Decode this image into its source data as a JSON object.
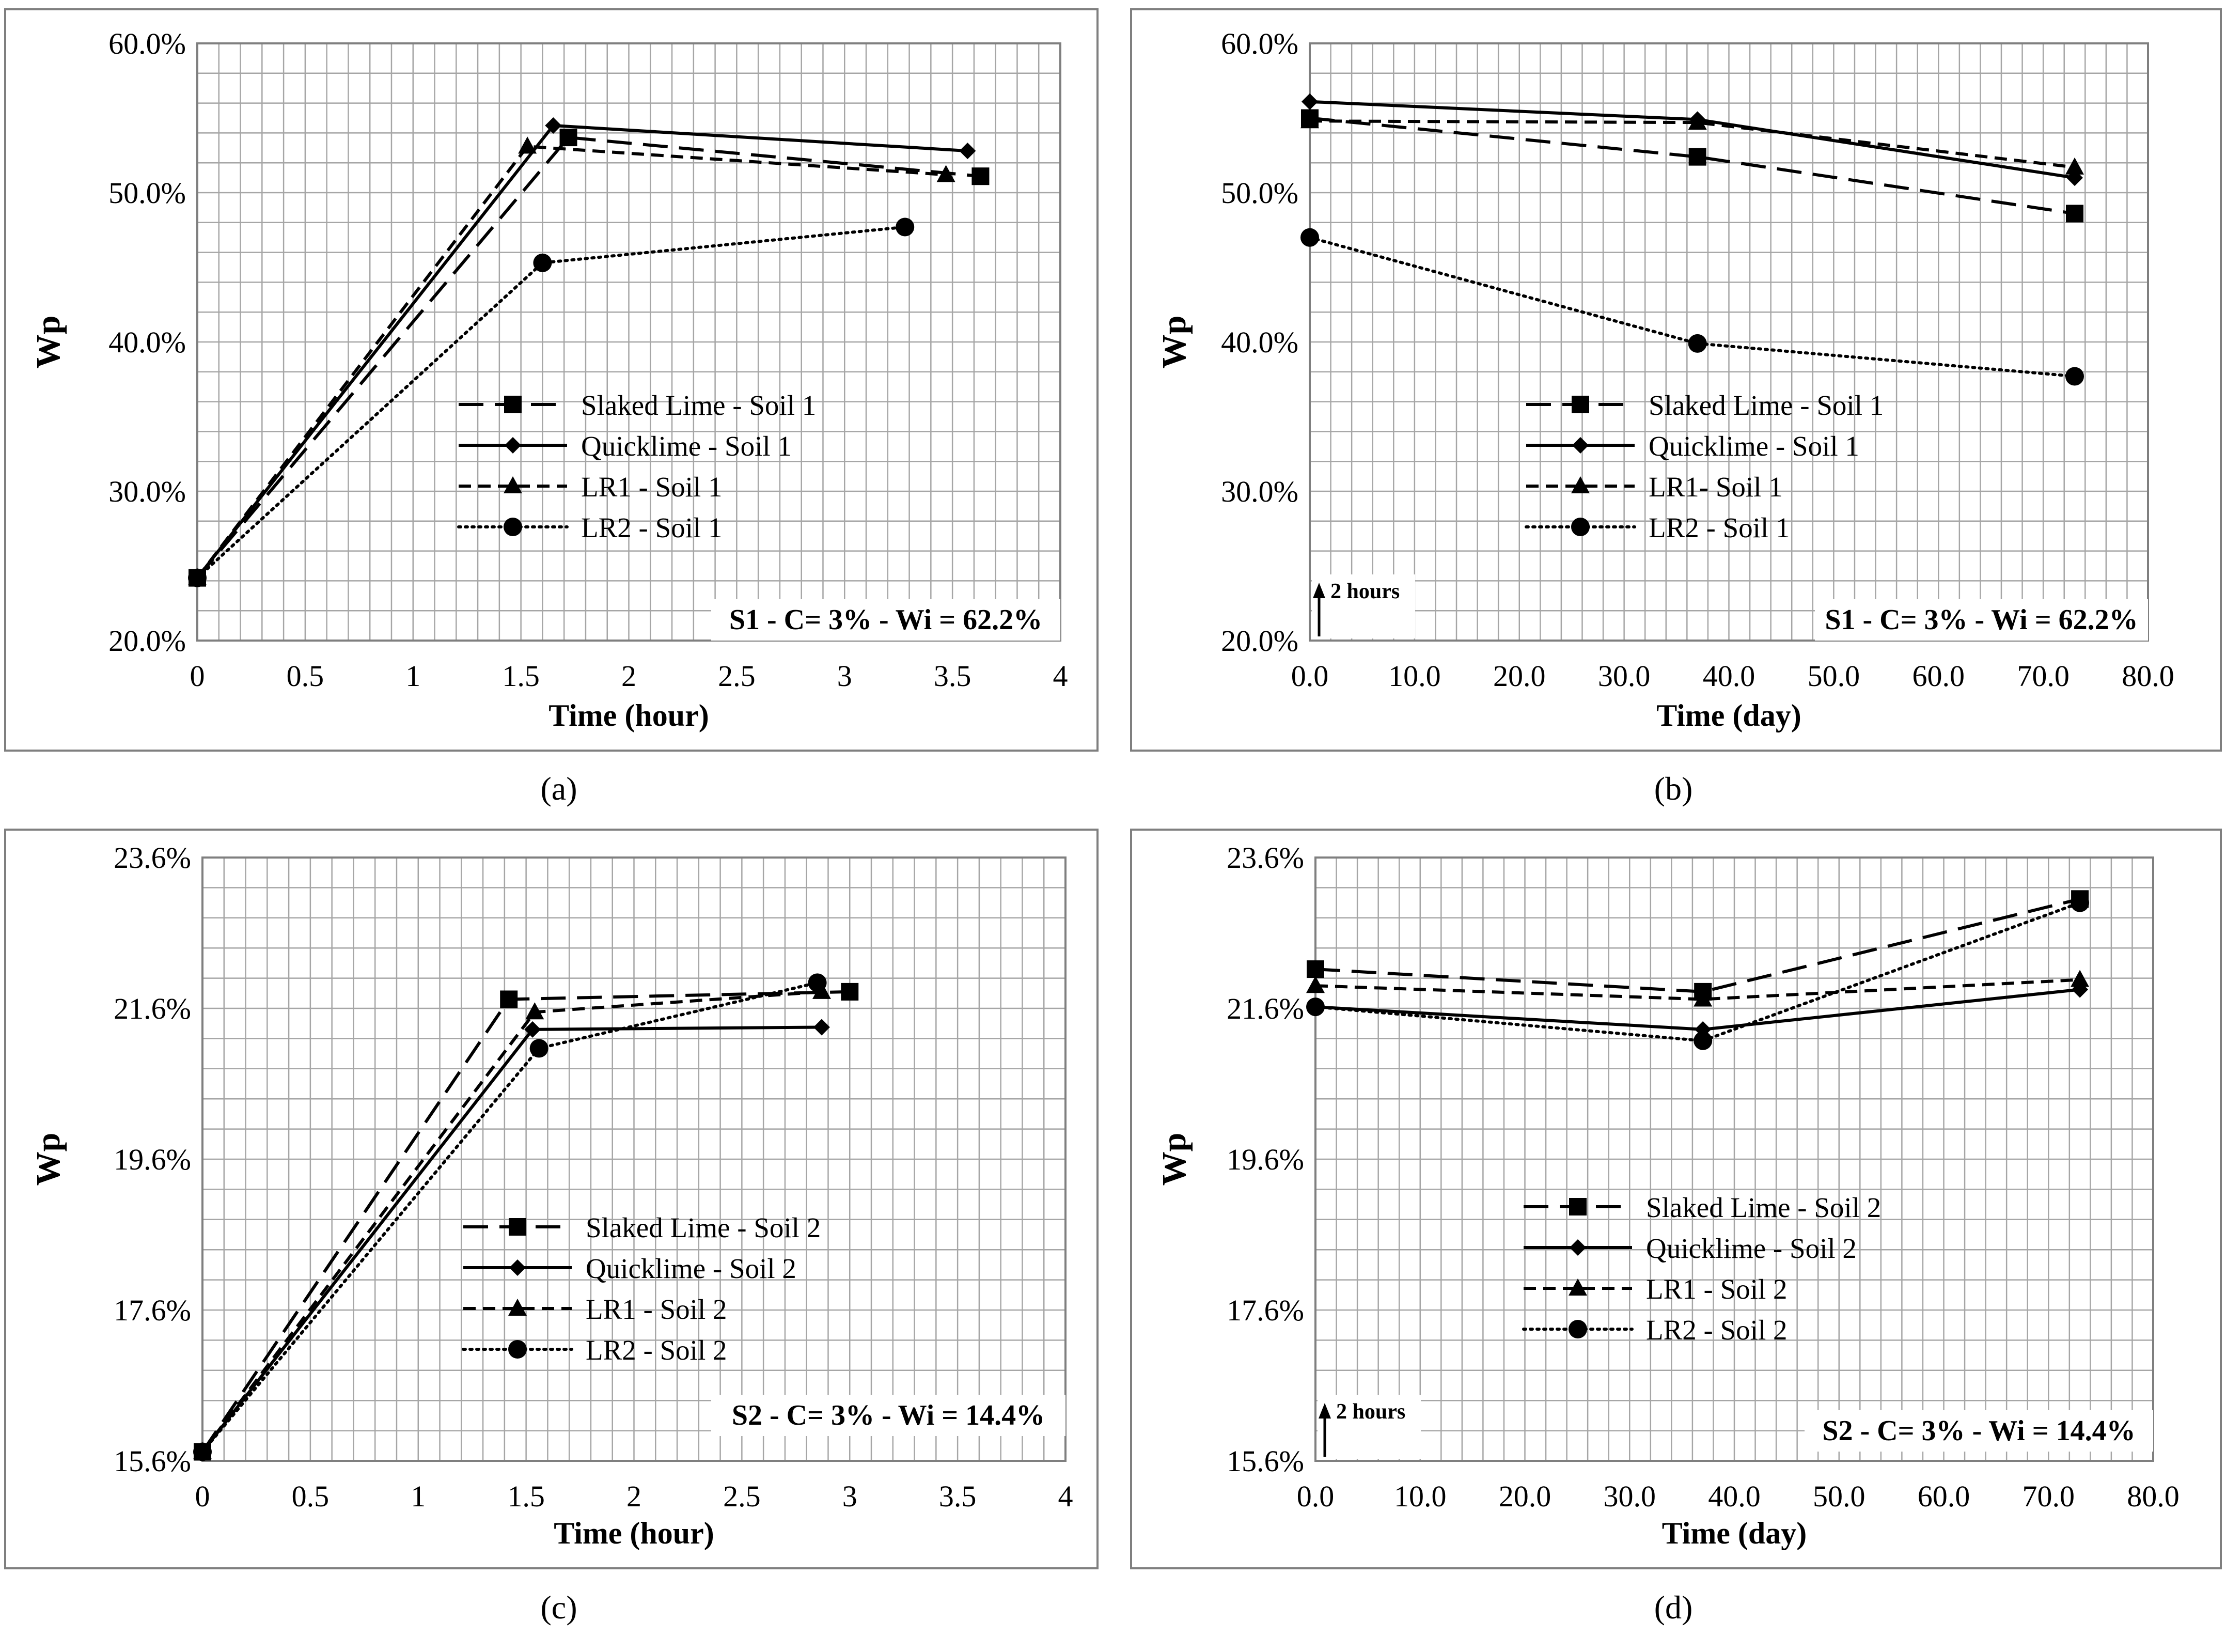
{
  "colors": {
    "frame": "#7f7f7f",
    "grid": "#a6a6a6",
    "series": "#000000",
    "background": "#ffffff"
  },
  "panels": [
    {
      "caption": "(a)",
      "annotation": "S1 - C= 3% - Wi = 62.2%",
      "arrow_note": ""
    },
    {
      "caption": "(b)",
      "annotation": "S1 - C= 3% - Wi = 62.2%",
      "arrow_note": "2 hours"
    },
    {
      "caption": "(c)",
      "annotation": "S2 - C= 3% - Wi = 14.4%",
      "arrow_note": ""
    },
    {
      "caption": "(d)",
      "annotation": "S2 - C= 3% - Wi = 14.4%",
      "arrow_note": "2 hours"
    }
  ],
  "chart_data": [
    {
      "type": "line",
      "xlabel": "Time (hour)",
      "ylabel": "Wp",
      "xlim": [
        0,
        4
      ],
      "ylim": [
        20,
        60
      ],
      "x_ticks": [
        "0",
        "0.5",
        "1",
        "1.5",
        "2",
        "2.5",
        "3",
        "3.5",
        "4"
      ],
      "y_ticks": [
        "20.0%",
        "30.0%",
        "40.0%",
        "50.0%",
        "60.0%"
      ],
      "grid": true,
      "legend_position": "center-right",
      "series": [
        {
          "name": "Slaked Lime - Soil 1",
          "line": "long-dash",
          "marker": "square",
          "points": [
            [
              0,
              24.2
            ],
            [
              1.72,
              53.7
            ],
            [
              3.63,
              51.1
            ]
          ]
        },
        {
          "name": "Quicklime - Soil 1",
          "line": "solid",
          "marker": "diamond",
          "points": [
            [
              0,
              24.2
            ],
            [
              1.65,
              54.5
            ],
            [
              3.57,
              52.8
            ]
          ]
        },
        {
          "name": "LR1 - Soil 1",
          "line": "short-dash",
          "marker": "triangle",
          "points": [
            [
              0,
              24.2
            ],
            [
              1.53,
              53.1
            ],
            [
              3.47,
              51.2
            ]
          ]
        },
        {
          "name": "LR2 - Soil 1",
          "line": "dotted",
          "marker": "circle",
          "points": [
            [
              0,
              24.2
            ],
            [
              1.6,
              45.3
            ],
            [
              3.28,
              47.7
            ]
          ]
        }
      ]
    },
    {
      "type": "line",
      "xlabel": "Time (day)",
      "ylabel": "Wp",
      "xlim": [
        0,
        80
      ],
      "ylim": [
        20,
        60
      ],
      "x_ticks": [
        "0.0",
        "10.0",
        "20.0",
        "30.0",
        "40.0",
        "50.0",
        "60.0",
        "70.0",
        "80.0"
      ],
      "y_ticks": [
        "20.0%",
        "30.0%",
        "40.0%",
        "50.0%",
        "60.0%"
      ],
      "grid": true,
      "legend_position": "center-right",
      "series": [
        {
          "name": "Slaked Lime - Soil 1",
          "line": "long-dash",
          "marker": "square",
          "points": [
            [
              0,
              55.0
            ],
            [
              37,
              52.4
            ],
            [
              73,
              48.6
            ]
          ]
        },
        {
          "name": "Quicklime - Soil 1",
          "line": "solid",
          "marker": "diamond",
          "points": [
            [
              0,
              56.1
            ],
            [
              37,
              54.9
            ],
            [
              73,
              51.0
            ]
          ]
        },
        {
          "name": "LR1- Soil 1",
          "line": "short-dash",
          "marker": "triangle",
          "points": [
            [
              0,
              54.8
            ],
            [
              37,
              54.7
            ],
            [
              73,
              51.7
            ]
          ]
        },
        {
          "name": "LR2 - Soil 1",
          "line": "dotted",
          "marker": "circle",
          "points": [
            [
              0,
              47.0
            ],
            [
              37,
              39.9
            ],
            [
              73,
              37.7
            ]
          ]
        }
      ]
    },
    {
      "type": "line",
      "xlabel": "Time (hour)",
      "ylabel": "Wp",
      "xlim": [
        0,
        4
      ],
      "ylim": [
        15.6,
        23.6
      ],
      "x_ticks": [
        "0",
        "0.5",
        "1",
        "1.5",
        "2",
        "2.5",
        "3",
        "3.5",
        "4"
      ],
      "y_ticks": [
        "15.6%",
        "17.6%",
        "19.6%",
        "21.6%",
        "23.6%"
      ],
      "grid": true,
      "legend_position": "center-right",
      "series": [
        {
          "name": "Slaked Lime - Soil 2",
          "line": "long-dash",
          "marker": "square",
          "points": [
            [
              0,
              15.72
            ],
            [
              1.42,
              21.72
            ],
            [
              3.0,
              21.82
            ]
          ]
        },
        {
          "name": "Quicklime - Soil 2",
          "line": "solid",
          "marker": "diamond",
          "points": [
            [
              0,
              15.72
            ],
            [
              1.53,
              21.32
            ],
            [
              2.87,
              21.35
            ]
          ]
        },
        {
          "name": "LR1 - Soil 2",
          "line": "short-dash",
          "marker": "triangle",
          "points": [
            [
              0,
              15.72
            ],
            [
              1.54,
              21.55
            ],
            [
              2.87,
              21.82
            ]
          ]
        },
        {
          "name": "LR2 - Soil 2",
          "line": "dotted",
          "marker": "circle",
          "points": [
            [
              0,
              15.72
            ],
            [
              1.56,
              21.07
            ],
            [
              2.85,
              21.94
            ]
          ]
        }
      ]
    },
    {
      "type": "line",
      "xlabel": "Time (day)",
      "ylabel": "Wp",
      "xlim": [
        0,
        80
      ],
      "ylim": [
        15.6,
        23.6
      ],
      "x_ticks": [
        "0.0",
        "10.0",
        "20.0",
        "30.0",
        "40.0",
        "50.0",
        "60.0",
        "70.0",
        "80.0"
      ],
      "y_ticks": [
        "15.6%",
        "17.6%",
        "19.6%",
        "21.6%",
        "23.6%"
      ],
      "grid": true,
      "legend_position": "center",
      "series": [
        {
          "name": "Slaked Lime - Soil 2",
          "line": "long-dash",
          "marker": "square",
          "points": [
            [
              0,
              22.12
            ],
            [
              37,
              21.82
            ],
            [
              73,
              23.05
            ]
          ]
        },
        {
          "name": "Quicklime - Soil 2",
          "line": "solid",
          "marker": "diamond",
          "points": [
            [
              0,
              21.62
            ],
            [
              37,
              21.32
            ],
            [
              73,
              21.85
            ]
          ]
        },
        {
          "name": "LR1 - Soil 2",
          "line": "short-dash",
          "marker": "triangle",
          "points": [
            [
              0,
              21.9
            ],
            [
              37,
              21.72
            ],
            [
              73,
              21.98
            ]
          ]
        },
        {
          "name": "LR2 - Soil 2",
          "line": "dotted",
          "marker": "circle",
          "points": [
            [
              0,
              21.62
            ],
            [
              37,
              21.17
            ],
            [
              73,
              23.0
            ]
          ]
        }
      ]
    }
  ]
}
